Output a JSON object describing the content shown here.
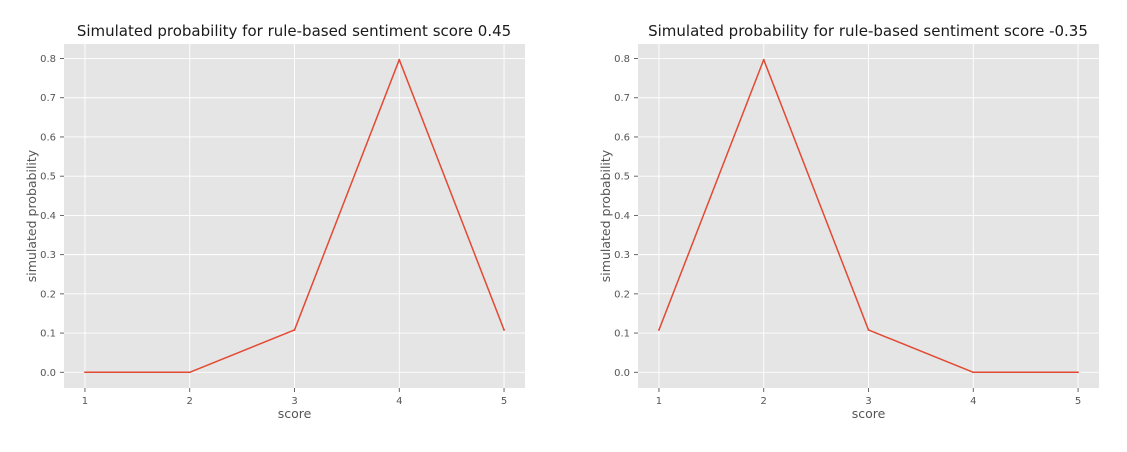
{
  "chart_data": [
    {
      "type": "line",
      "title": "Simulated probability for rule-based sentiment score 0.45",
      "xlabel": "score",
      "ylabel": "simulated probability",
      "x": [
        1,
        2,
        3,
        4,
        5
      ],
      "series": [
        {
          "values": [
            0.0,
            0.0,
            0.108,
            0.797,
            0.108
          ],
          "color": "#e24a33"
        }
      ],
      "xticks": [
        "1",
        "2",
        "3",
        "4",
        "5"
      ],
      "yticks": [
        "0.0",
        "0.1",
        "0.2",
        "0.3",
        "0.4",
        "0.5",
        "0.6",
        "0.7",
        "0.8"
      ],
      "xlim": [
        0.8,
        5.2
      ],
      "ylim": [
        -0.04,
        0.837
      ],
      "grid": true,
      "style": "ggplot"
    },
    {
      "type": "line",
      "title": "Simulated probability for rule-based sentiment score -0.35",
      "xlabel": "score",
      "ylabel": "simulated probability",
      "x": [
        1,
        2,
        3,
        4,
        5
      ],
      "series": [
        {
          "values": [
            0.108,
            0.797,
            0.108,
            0.0,
            0.0
          ],
          "color": "#e24a33"
        }
      ],
      "xticks": [
        "1",
        "2",
        "3",
        "4",
        "5"
      ],
      "yticks": [
        "0.0",
        "0.1",
        "0.2",
        "0.3",
        "0.4",
        "0.5",
        "0.6",
        "0.7",
        "0.8"
      ],
      "xlim": [
        0.8,
        5.2
      ],
      "ylim": [
        -0.04,
        0.837
      ],
      "grid": true,
      "style": "ggplot"
    }
  ]
}
